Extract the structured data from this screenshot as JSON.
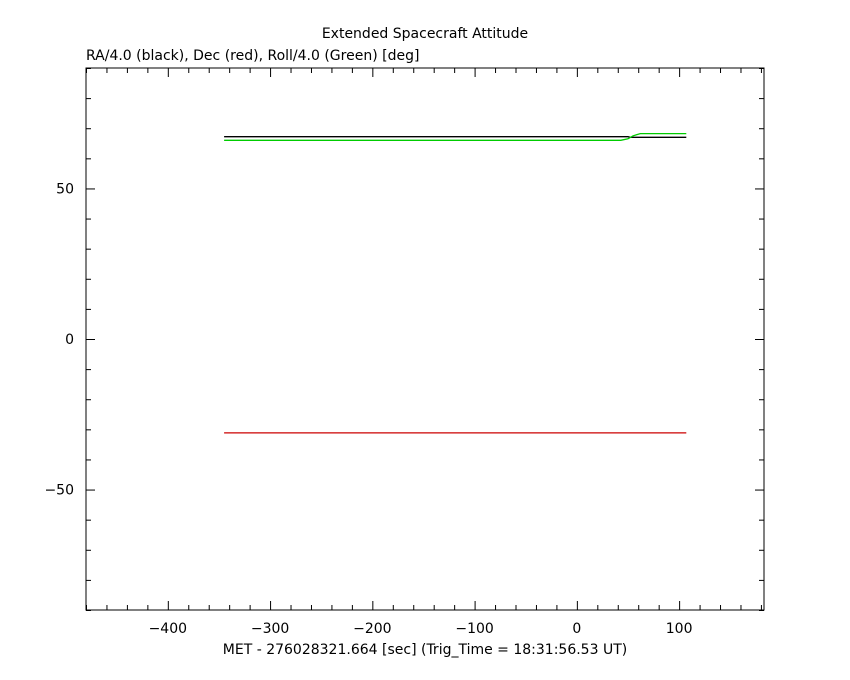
{
  "chart_data": {
    "type": "line",
    "title": "Extended Spacecraft Attitude",
    "subtitle": "RA/4.0 (black), Dec (red), Roll/4.0 (Green) [deg]",
    "xlabel": "MET - 276028321.664 [sec] (Trig_Time = 18:31:56.53 UT)",
    "ylabel": "",
    "xlim": [
      -480,
      183
    ],
    "ylim": [
      -90,
      90
    ],
    "x_ticks": [
      -400,
      -300,
      -200,
      -100,
      0,
      100
    ],
    "x_tick_labels": [
      "−400",
      "−300",
      "−200",
      "−100",
      "0",
      "100"
    ],
    "y_ticks": [
      -50,
      0,
      50
    ],
    "y_tick_labels": [
      "−50",
      "0",
      "50"
    ],
    "grid": false,
    "series": [
      {
        "color": "#000000",
        "x": [
          -345,
          50,
          52,
          107
        ],
        "y": [
          67.2,
          67.2,
          67.0,
          67.0
        ]
      },
      {
        "color": "#cc0000",
        "x": [
          -345,
          107
        ],
        "y": [
          -31.2,
          -31.2
        ]
      },
      {
        "color": "#00cc00",
        "x": [
          -345,
          43,
          50,
          55,
          62,
          107
        ],
        "y": [
          66.0,
          66.0,
          66.5,
          67.5,
          68.2,
          68.2
        ]
      }
    ]
  }
}
